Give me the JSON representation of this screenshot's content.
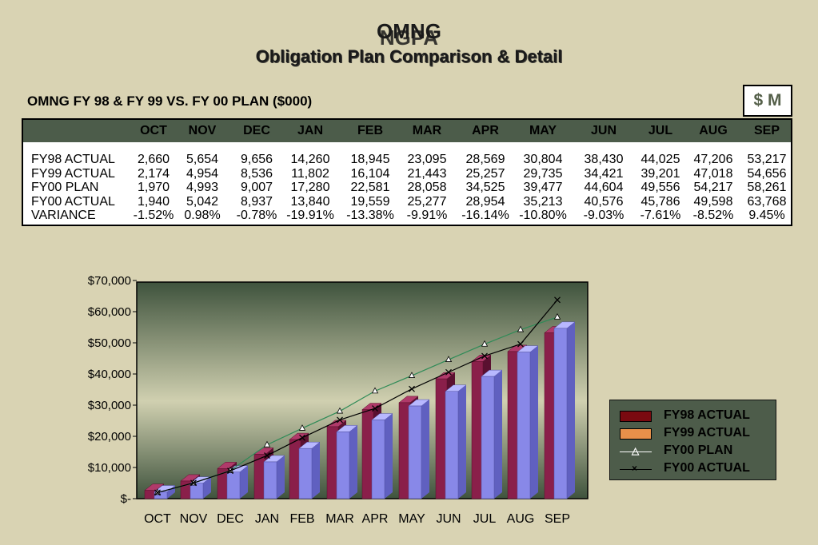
{
  "header": {
    "title_line1_a": "OMNG",
    "title_line1_b": "NGPA",
    "title_line2_a": "Obligation Plan Comparison & Detail",
    "title_line2_b": "Obligation Plan Comparison & Detail"
  },
  "table": {
    "title": "OMNG FY 98 & FY 99 VS. FY 00 PLAN ($000)",
    "units_badge": "$ M",
    "columns": [
      "OCT",
      "NOV",
      "DEC",
      "JAN",
      "FEB",
      "MAR",
      "APR",
      "MAY",
      "JUN",
      "JUL",
      "AUG",
      "SEP"
    ],
    "rows": [
      {
        "label": "FY98 ACTUAL",
        "values": [
          "2,660",
          "5,654",
          "9,656",
          "14,260",
          "18,945",
          "23,095",
          "28,569",
          "30,804",
          "38,430",
          "44,025",
          "47,206",
          "53,217"
        ]
      },
      {
        "label": "FY99 ACTUAL",
        "values": [
          "2,174",
          "4,954",
          "8,536",
          "11,802",
          "16,104",
          "21,443",
          "25,257",
          "29,735",
          "34,421",
          "39,201",
          "47,018",
          "54,656"
        ]
      },
      {
        "label": "FY00 PLAN",
        "values": [
          "1,970",
          "4,993",
          "9,007",
          "17,280",
          "22,581",
          "28,058",
          "34,525",
          "39,477",
          "44,604",
          "49,556",
          "54,217",
          "58,261"
        ]
      },
      {
        "label": "FY00 ACTUAL",
        "values": [
          "1,940",
          "5,042",
          "8,937",
          "13,840",
          "19,559",
          "25,277",
          "28,954",
          "35,213",
          "40,576",
          "45,786",
          "49,598",
          "63,768"
        ]
      },
      {
        "label": "VARIANCE",
        "values": [
          "-1.52%",
          "0.98%",
          "-0.78%",
          "-19.91%",
          "-13.38%",
          "-9.91%",
          "-16.14%",
          "-10.80%",
          "-9.03%",
          "-7.61%",
          "-8.52%",
          "9.45%"
        ]
      }
    ]
  },
  "chart_data": {
    "type": "bar",
    "categories": [
      "OCT",
      "NOV",
      "DEC",
      "JAN",
      "FEB",
      "MAR",
      "APR",
      "MAY",
      "JUN",
      "JUL",
      "AUG",
      "SEP"
    ],
    "series": [
      {
        "name": "FY98 ACTUAL",
        "kind": "bar",
        "color": "#7a1a3a",
        "values": [
          2660,
          5654,
          9656,
          14260,
          18945,
          23095,
          28569,
          30804,
          38430,
          44025,
          47206,
          53217
        ]
      },
      {
        "name": "FY99 ACTUAL",
        "kind": "bar",
        "color": "#8080e0",
        "values": [
          2174,
          4954,
          8536,
          11802,
          16104,
          21443,
          25257,
          29735,
          34421,
          39201,
          47018,
          54656
        ]
      },
      {
        "name": "FY00 PLAN",
        "kind": "line",
        "color": "#2e8b57",
        "marker": "triangle",
        "values": [
          1970,
          4993,
          9007,
          17280,
          22581,
          28058,
          34525,
          39477,
          44604,
          49556,
          54217,
          58261
        ]
      },
      {
        "name": "FY00 ACTUAL",
        "kind": "line",
        "color": "#000000",
        "marker": "x",
        "values": [
          1940,
          5042,
          8937,
          13840,
          19559,
          25277,
          28954,
          35213,
          40576,
          45786,
          49598,
          63768
        ]
      }
    ],
    "yticks": [
      "$-",
      "$10,000",
      "$20,000",
      "$30,000",
      "$40,000",
      "$50,000",
      "$60,000",
      "$70,000"
    ],
    "ylim": [
      0,
      70000
    ],
    "legend_swatches": [
      {
        "label": "FY98 ACTUAL",
        "color": "#7a0a10",
        "kind": "bar"
      },
      {
        "label": "FY99 ACTUAL",
        "color": "#e8904a",
        "kind": "bar"
      },
      {
        "label": "FY00 PLAN",
        "color": "#ffffff",
        "kind": "line-triangle"
      },
      {
        "label": "FY00 ACTUAL",
        "color": "#000000",
        "kind": "line-x"
      }
    ],
    "legend_position": "right"
  }
}
